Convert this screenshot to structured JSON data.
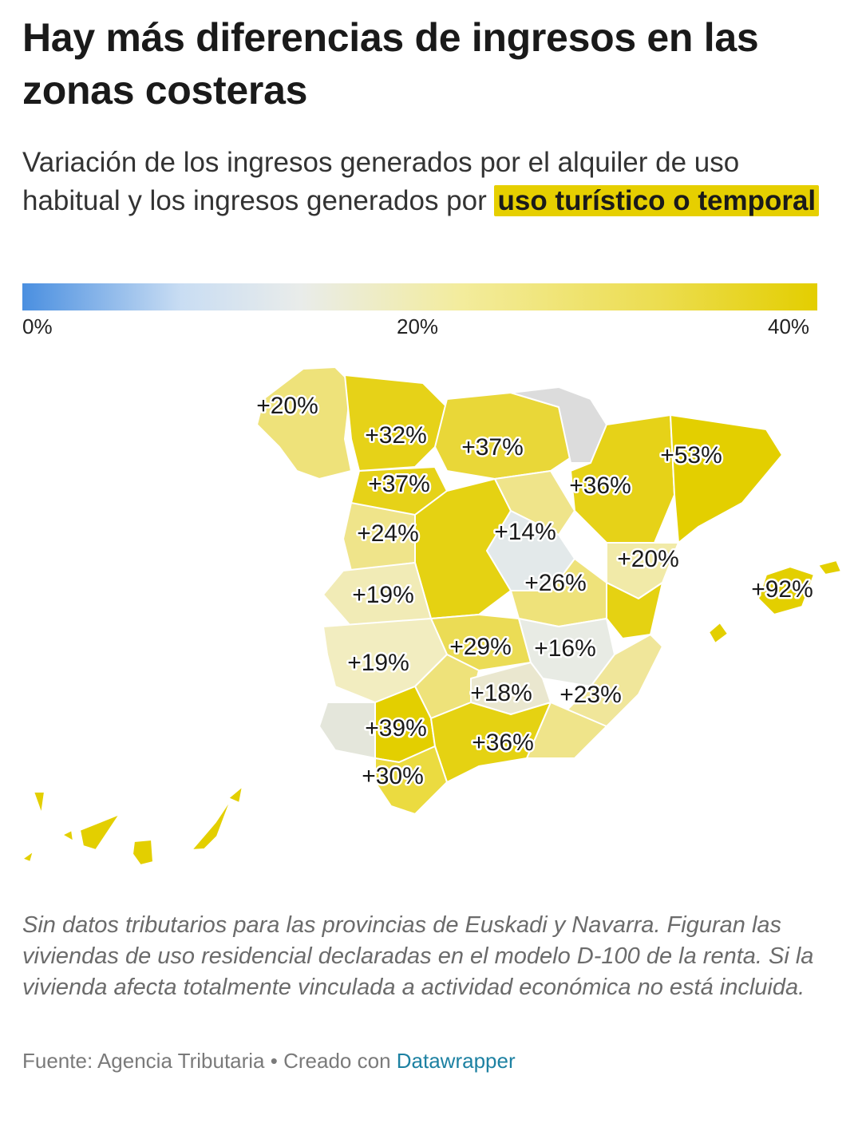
{
  "title": "Hay más diferencias de ingresos en las zonas costeras",
  "subtitle": {
    "before": "Variación de los ingresos generados por el alquiler de uso habitual y los ingresos generados por ",
    "highlight": "uso turístico o temporal"
  },
  "legend": {
    "min_label": "0%",
    "mid_label": "20%",
    "max_label": "40%",
    "color_low": "#4a8fe0",
    "color_mid": "#e9ecea",
    "color_high": "#e3ce00"
  },
  "colors": {
    "accent": "#e6cf00",
    "no_data": "#dcdcdc",
    "link": "#1d81a2"
  },
  "map_labels": [
    {
      "id": "galicia",
      "text": "+20%"
    },
    {
      "id": "asturias-leon",
      "text": "+32%"
    },
    {
      "id": "burgos",
      "text": "+37%"
    },
    {
      "id": "cataluna",
      "text": "+53%"
    },
    {
      "id": "zamora",
      "text": "+37%"
    },
    {
      "id": "aragon",
      "text": "+36%"
    },
    {
      "id": "salamanca",
      "text": "+24%"
    },
    {
      "id": "madrid",
      "text": "+14%"
    },
    {
      "id": "castellon",
      "text": "+20%"
    },
    {
      "id": "baleares",
      "text": "+92%"
    },
    {
      "id": "caceres",
      "text": "+19%"
    },
    {
      "id": "cuenca",
      "text": "+26%"
    },
    {
      "id": "ciudad-real",
      "text": "+29%"
    },
    {
      "id": "albacete",
      "text": "+16%"
    },
    {
      "id": "badajoz",
      "text": "+19%"
    },
    {
      "id": "jaen",
      "text": "+18%"
    },
    {
      "id": "alicante",
      "text": "+23%"
    },
    {
      "id": "sevilla",
      "text": "+39%"
    },
    {
      "id": "granada",
      "text": "+36%"
    },
    {
      "id": "cadiz",
      "text": "+30%"
    }
  ],
  "notes": "Sin datos tributarios para las provincias de Euskadi y Navarra. Figuran las viviendas de uso residencial declaradas en el modelo D-100 de la renta. Si la vivienda afecta totalmente vinculada a actividad económica no está incluida.",
  "footer": {
    "source": "Fuente: Agencia Tributaria",
    "separator": "•",
    "created_with": "Creado con",
    "tool": "Datawrapper"
  }
}
